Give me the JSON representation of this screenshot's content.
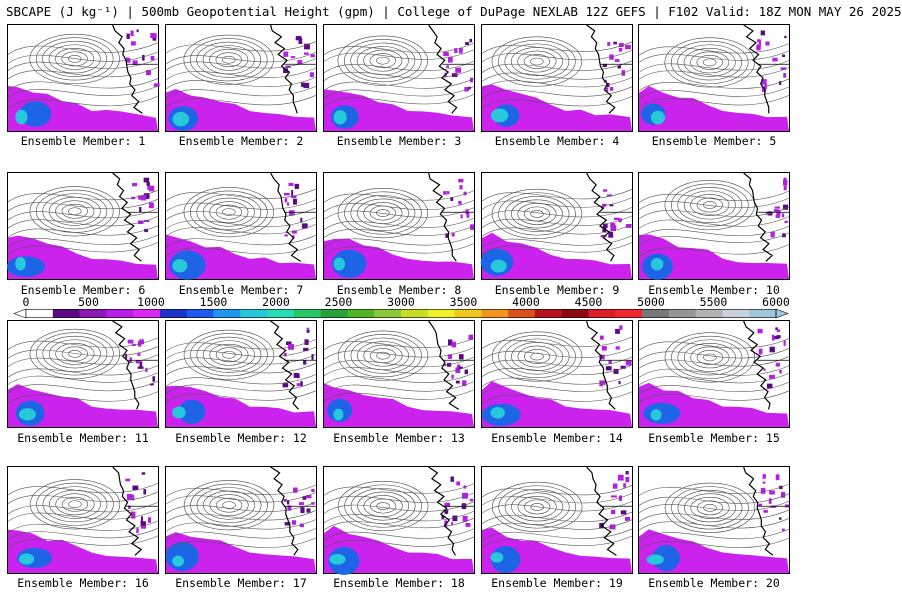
{
  "header": {
    "title": "SBCAPE (J kg⁻¹) | 500mb Geopotential Height (gpm) | College of DuPage NEXLAB 12Z GEFS | F102 Valid: 18Z MON MAY 26 2025"
  },
  "members": [
    {
      "label": "Ensemble Member: 1"
    },
    {
      "label": "Ensemble Member: 2"
    },
    {
      "label": "Ensemble Member: 3"
    },
    {
      "label": "Ensemble Member: 4"
    },
    {
      "label": "Ensemble Member: 5"
    },
    {
      "label": "Ensemble Member: 6"
    },
    {
      "label": "Ensemble Member: 7"
    },
    {
      "label": "Ensemble Member: 8"
    },
    {
      "label": "Ensemble Member: 9"
    },
    {
      "label": "Ensemble Member: 10"
    },
    {
      "label": "Ensemble Member: 11"
    },
    {
      "label": "Ensemble Member: 12"
    },
    {
      "label": "Ensemble Member: 13"
    },
    {
      "label": "Ensemble Member: 14"
    },
    {
      "label": "Ensemble Member: 15"
    },
    {
      "label": "Ensemble Member: 16"
    },
    {
      "label": "Ensemble Member: 17"
    },
    {
      "label": "Ensemble Member: 18"
    },
    {
      "label": "Ensemble Member: 19"
    },
    {
      "label": "Ensemble Member: 20"
    }
  ],
  "colorbar": {
    "ticks": [
      "0",
      "500",
      "1000",
      "1500",
      "2000",
      "2500",
      "3000",
      "3500",
      "4000",
      "4500",
      "5000",
      "5500",
      "6000"
    ],
    "colors": [
      "#ffffff",
      "#5a0a82",
      "#8c1ab4",
      "#b41ee6",
      "#dc28f0",
      "#1e32c8",
      "#1e5af0",
      "#1e96f0",
      "#28c8dc",
      "#28dcb4",
      "#28c864",
      "#28a03c",
      "#50b428",
      "#8cc83c",
      "#c8dc28",
      "#f0f028",
      "#f0c81e",
      "#f0961e",
      "#dc501e",
      "#b4141e",
      "#8c0a14",
      "#dc1e28",
      "#f02832",
      "#787878",
      "#969696",
      "#b4b4b4",
      "#c8d2dc",
      "#a0c8dc"
    ],
    "range": [
      0,
      6000
    ]
  }
}
